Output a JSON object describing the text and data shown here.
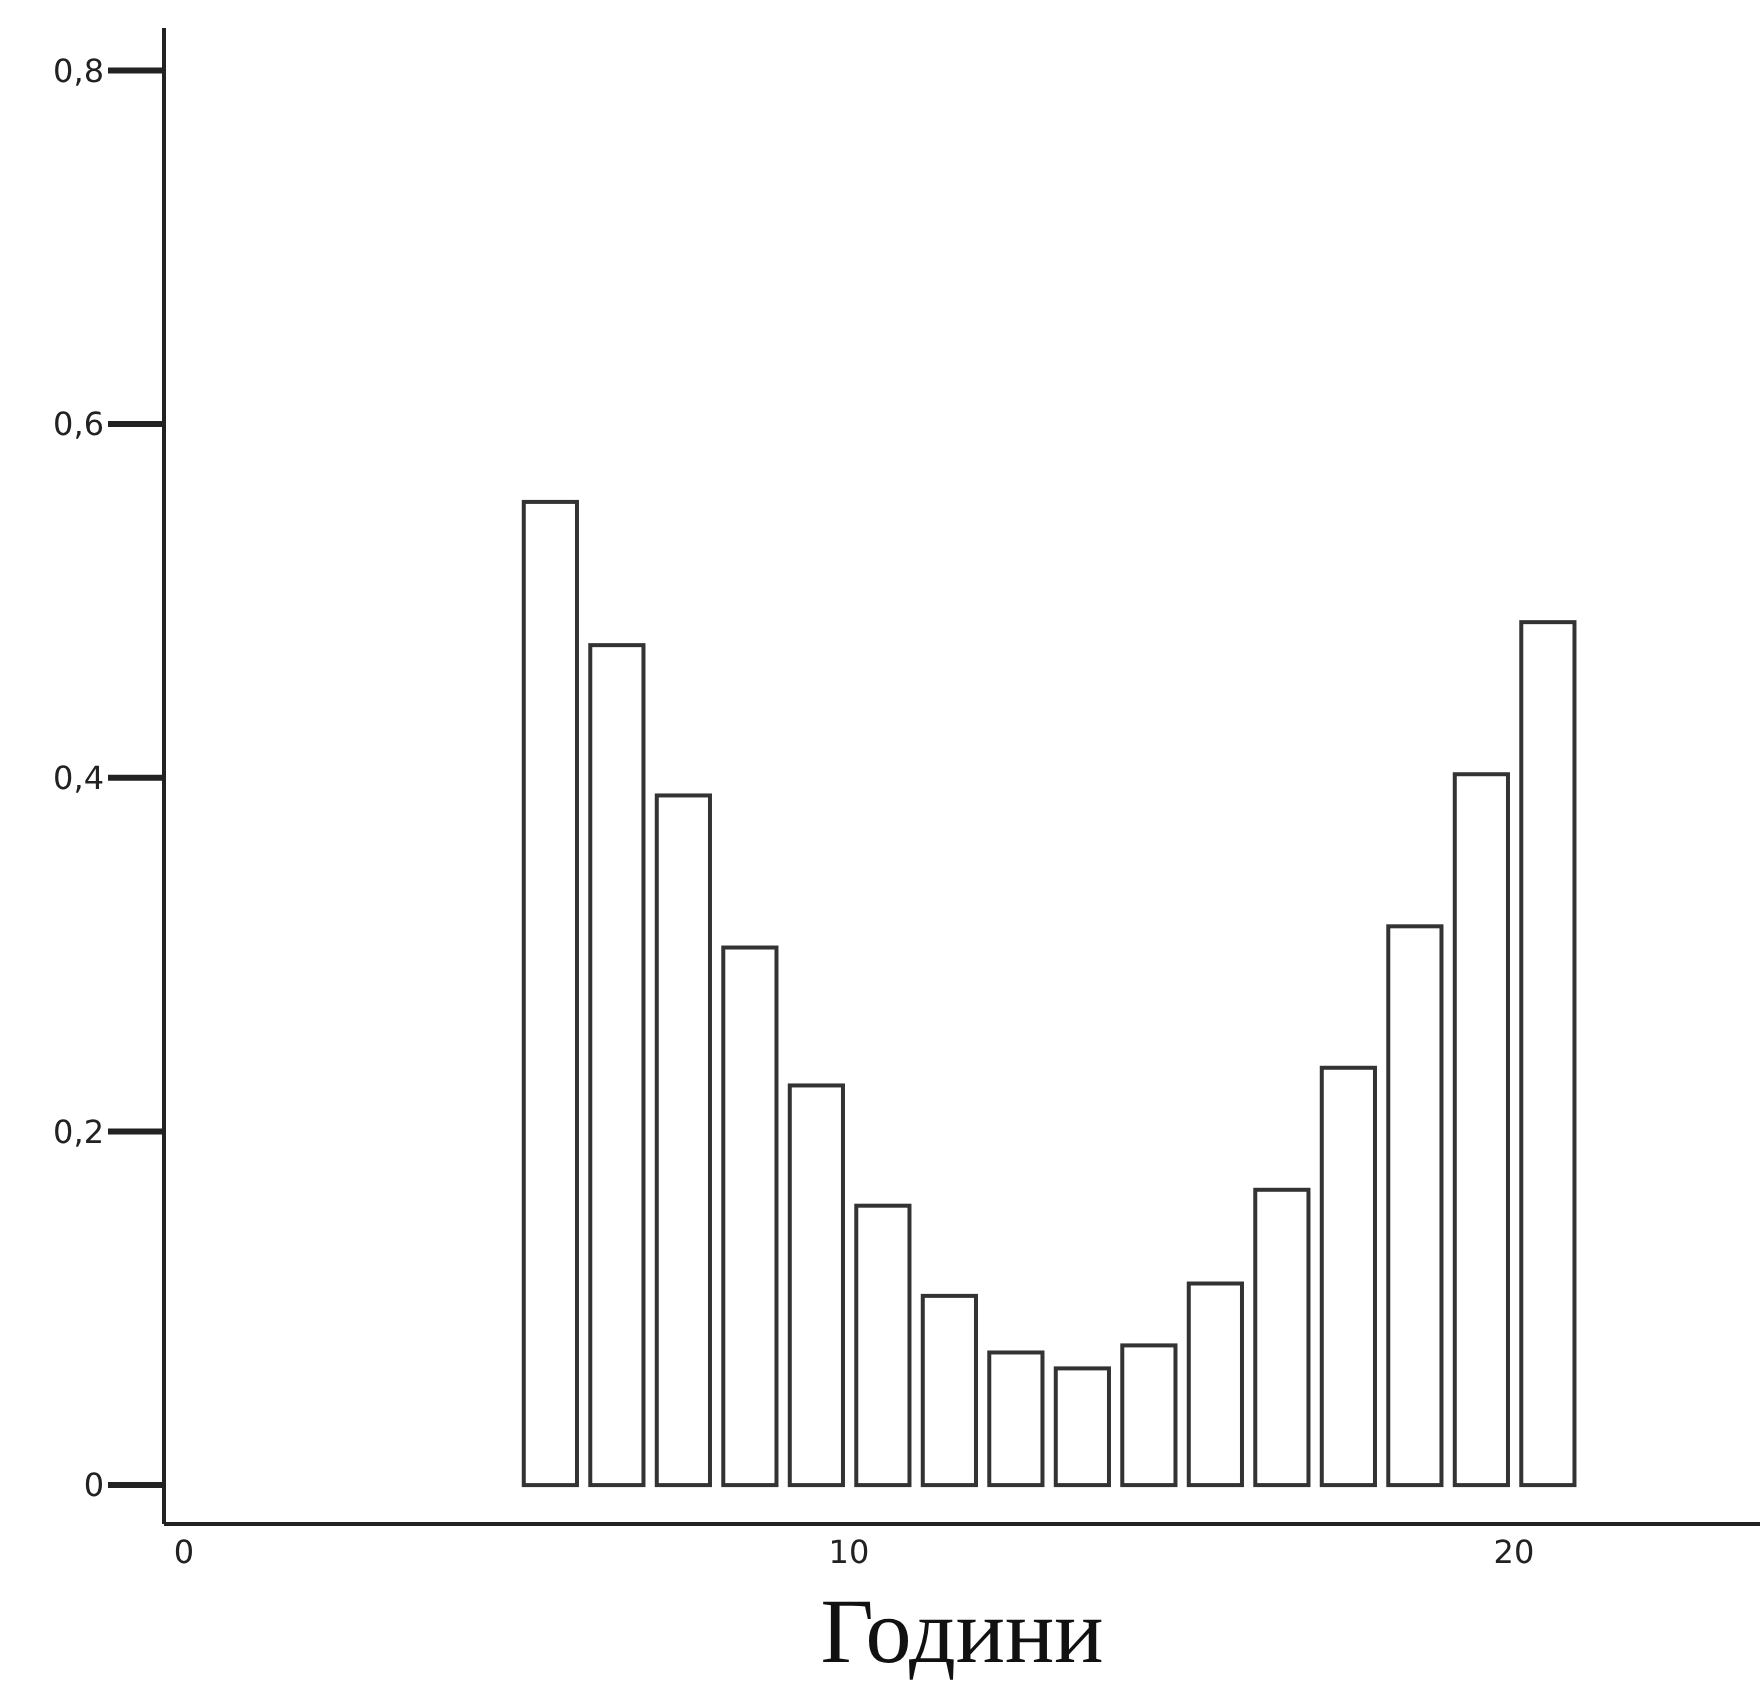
{
  "chart_data": {
    "type": "histogram",
    "xlabel": "Години",
    "bins": [
      0,
      1,
      2,
      3,
      4,
      5,
      6,
      7,
      8,
      9,
      10,
      11,
      12,
      13,
      14,
      15,
      16,
      17,
      18,
      19,
      20,
      21,
      22,
      23,
      24
    ],
    "values": [
      0,
      0,
      0,
      0,
      0,
      0.556,
      0.475,
      0.39,
      0.304,
      0.226,
      0.158,
      0.107,
      0.075,
      0.066,
      0.079,
      0.114,
      0.167,
      0.236,
      0.316,
      0.402,
      0.488,
      0,
      0,
      0
    ],
    "color": "#ffffff",
    "xlim": [
      -0.3,
      23.7
    ],
    "xticks": [
      0,
      10,
      20
    ],
    "ylim": [
      -0.022,
      0.824
    ],
    "yticks": [
      {
        "value": 0,
        "label": "0"
      },
      {
        "value": 0.2,
        "label": "0,2"
      },
      {
        "value": 0.4,
        "label": "0,4"
      },
      {
        "value": 0.6,
        "label": "0,6"
      },
      {
        "value": 0.8,
        "label": "0,8"
      }
    ]
  }
}
